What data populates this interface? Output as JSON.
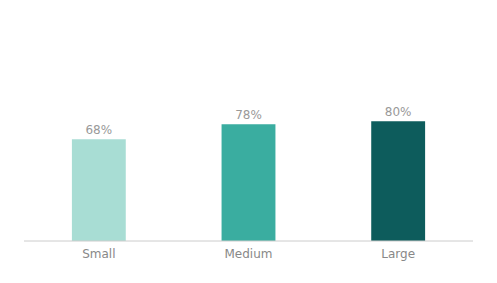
{
  "chart_data": {
    "type": "bar",
    "categories": [
      "Small",
      "Medium",
      "Large"
    ],
    "values": [
      68,
      78,
      80
    ],
    "value_labels": [
      "68%",
      "78%",
      "80%"
    ],
    "colors": [
      "#a8ddd4",
      "#3aada0",
      "#0d5c5c"
    ],
    "ylim": [
      0,
      145
    ],
    "data_labels": true,
    "tick_labels": "x",
    "grid": false
  }
}
